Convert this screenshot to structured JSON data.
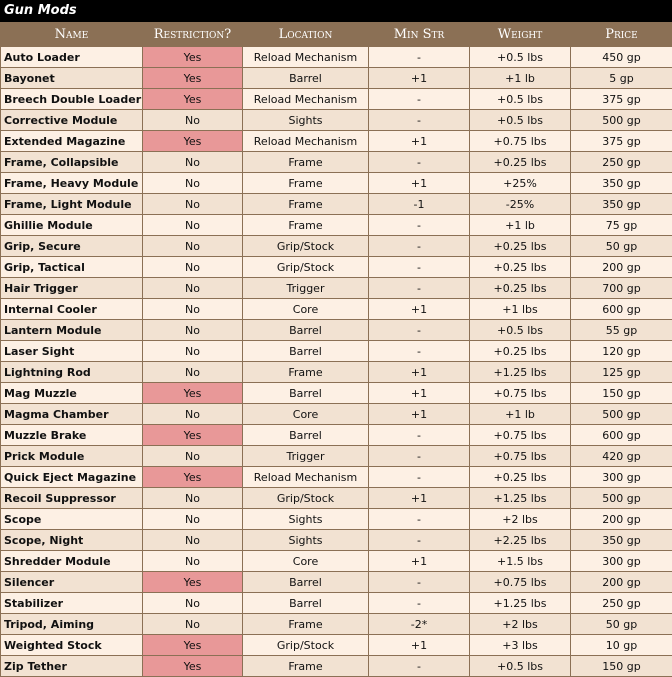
{
  "title": "Gun Mods",
  "colors": {
    "header": "#8b7055",
    "row_light": "#fdf0e4",
    "row_dark": "#f2e2d2",
    "restricted": "#e89898"
  },
  "columns": [
    "Name",
    "Restriction?",
    "Location",
    "Min Str",
    "Weight",
    "Price"
  ],
  "rows": [
    [
      "Auto Loader",
      "Yes",
      "Reload Mechanism",
      "-",
      "+0.5 lbs",
      "450 gp"
    ],
    [
      "Bayonet",
      "Yes",
      "Barrel",
      "+1",
      "+1 lb",
      "5 gp"
    ],
    [
      "Breech Double Loader",
      "Yes",
      "Reload Mechanism",
      "-",
      "+0.5 lbs",
      "375 gp"
    ],
    [
      "Corrective Module",
      "No",
      "Sights",
      "-",
      "+0.5 lbs",
      "500 gp"
    ],
    [
      "Extended Magazine",
      "Yes",
      "Reload Mechanism",
      "+1",
      "+0.75 lbs",
      "375 gp"
    ],
    [
      "Frame, Collapsible",
      "No",
      "Frame",
      "-",
      "+0.25 lbs",
      "250 gp"
    ],
    [
      "Frame, Heavy Module",
      "No",
      "Frame",
      "+1",
      "+25%",
      "350 gp"
    ],
    [
      "Frame, Light Module",
      "No",
      "Frame",
      "-1",
      "-25%",
      "350 gp"
    ],
    [
      "Ghillie Module",
      "No",
      "Frame",
      "-",
      "+1 lb",
      "75 gp"
    ],
    [
      "Grip, Secure",
      "No",
      "Grip/Stock",
      "-",
      "+0.25 lbs",
      "50 gp"
    ],
    [
      "Grip, Tactical",
      "No",
      "Grip/Stock",
      "-",
      "+0.25 lbs",
      "200 gp"
    ],
    [
      "Hair Trigger",
      "No",
      "Trigger",
      "-",
      "+0.25 lbs",
      "700 gp"
    ],
    [
      "Internal Cooler",
      "No",
      "Core",
      "+1",
      "+1 lbs",
      "600 gp"
    ],
    [
      "Lantern Module",
      "No",
      "Barrel",
      "-",
      "+0.5 lbs",
      "55 gp"
    ],
    [
      "Laser Sight",
      "No",
      "Barrel",
      "-",
      "+0.25 lbs",
      "120 gp"
    ],
    [
      "Lightning Rod",
      "No",
      "Frame",
      "+1",
      "+1.25 lbs",
      "125 gp"
    ],
    [
      "Mag Muzzle",
      "Yes",
      "Barrel",
      "+1",
      "+0.75 lbs",
      "150 gp"
    ],
    [
      "Magma Chamber",
      "No",
      "Core",
      "+1",
      "+1 lb",
      "500 gp"
    ],
    [
      "Muzzle Brake",
      "Yes",
      "Barrel",
      "-",
      "+0.75 lbs",
      "600 gp"
    ],
    [
      "Prick Module",
      "No",
      "Trigger",
      "-",
      "+0.75 lbs",
      "420 gp"
    ],
    [
      "Quick Eject Magazine",
      "Yes",
      "Reload Mechanism",
      "-",
      "+0.25 lbs",
      "300 gp"
    ],
    [
      "Recoil Suppressor",
      "No",
      "Grip/Stock",
      "+1",
      "+1.25 lbs",
      "500 gp"
    ],
    [
      "Scope",
      "No",
      "Sights",
      "-",
      "+2 lbs",
      "200 gp"
    ],
    [
      "Scope, Night",
      "No",
      "Sights",
      "-",
      "+2.25 lbs",
      "350 gp"
    ],
    [
      "Shredder Module",
      "No",
      "Core",
      "+1",
      "+1.5 lbs",
      "300 gp"
    ],
    [
      "Silencer",
      "Yes",
      "Barrel",
      "-",
      "+0.75 lbs",
      "200 gp"
    ],
    [
      "Stabilizer",
      "No",
      "Barrel",
      "-",
      "+1.25 lbs",
      "250 gp"
    ],
    [
      "Tripod, Aiming",
      "No",
      "Frame",
      "-2*",
      "+2 lbs",
      "50 gp"
    ],
    [
      "Weighted Stock",
      "Yes",
      "Grip/Stock",
      "+1",
      "+3 lbs",
      "10 gp"
    ],
    [
      "Zip Tether",
      "Yes",
      "Frame",
      "-",
      "+0.5 lbs",
      "150 gp"
    ]
  ]
}
